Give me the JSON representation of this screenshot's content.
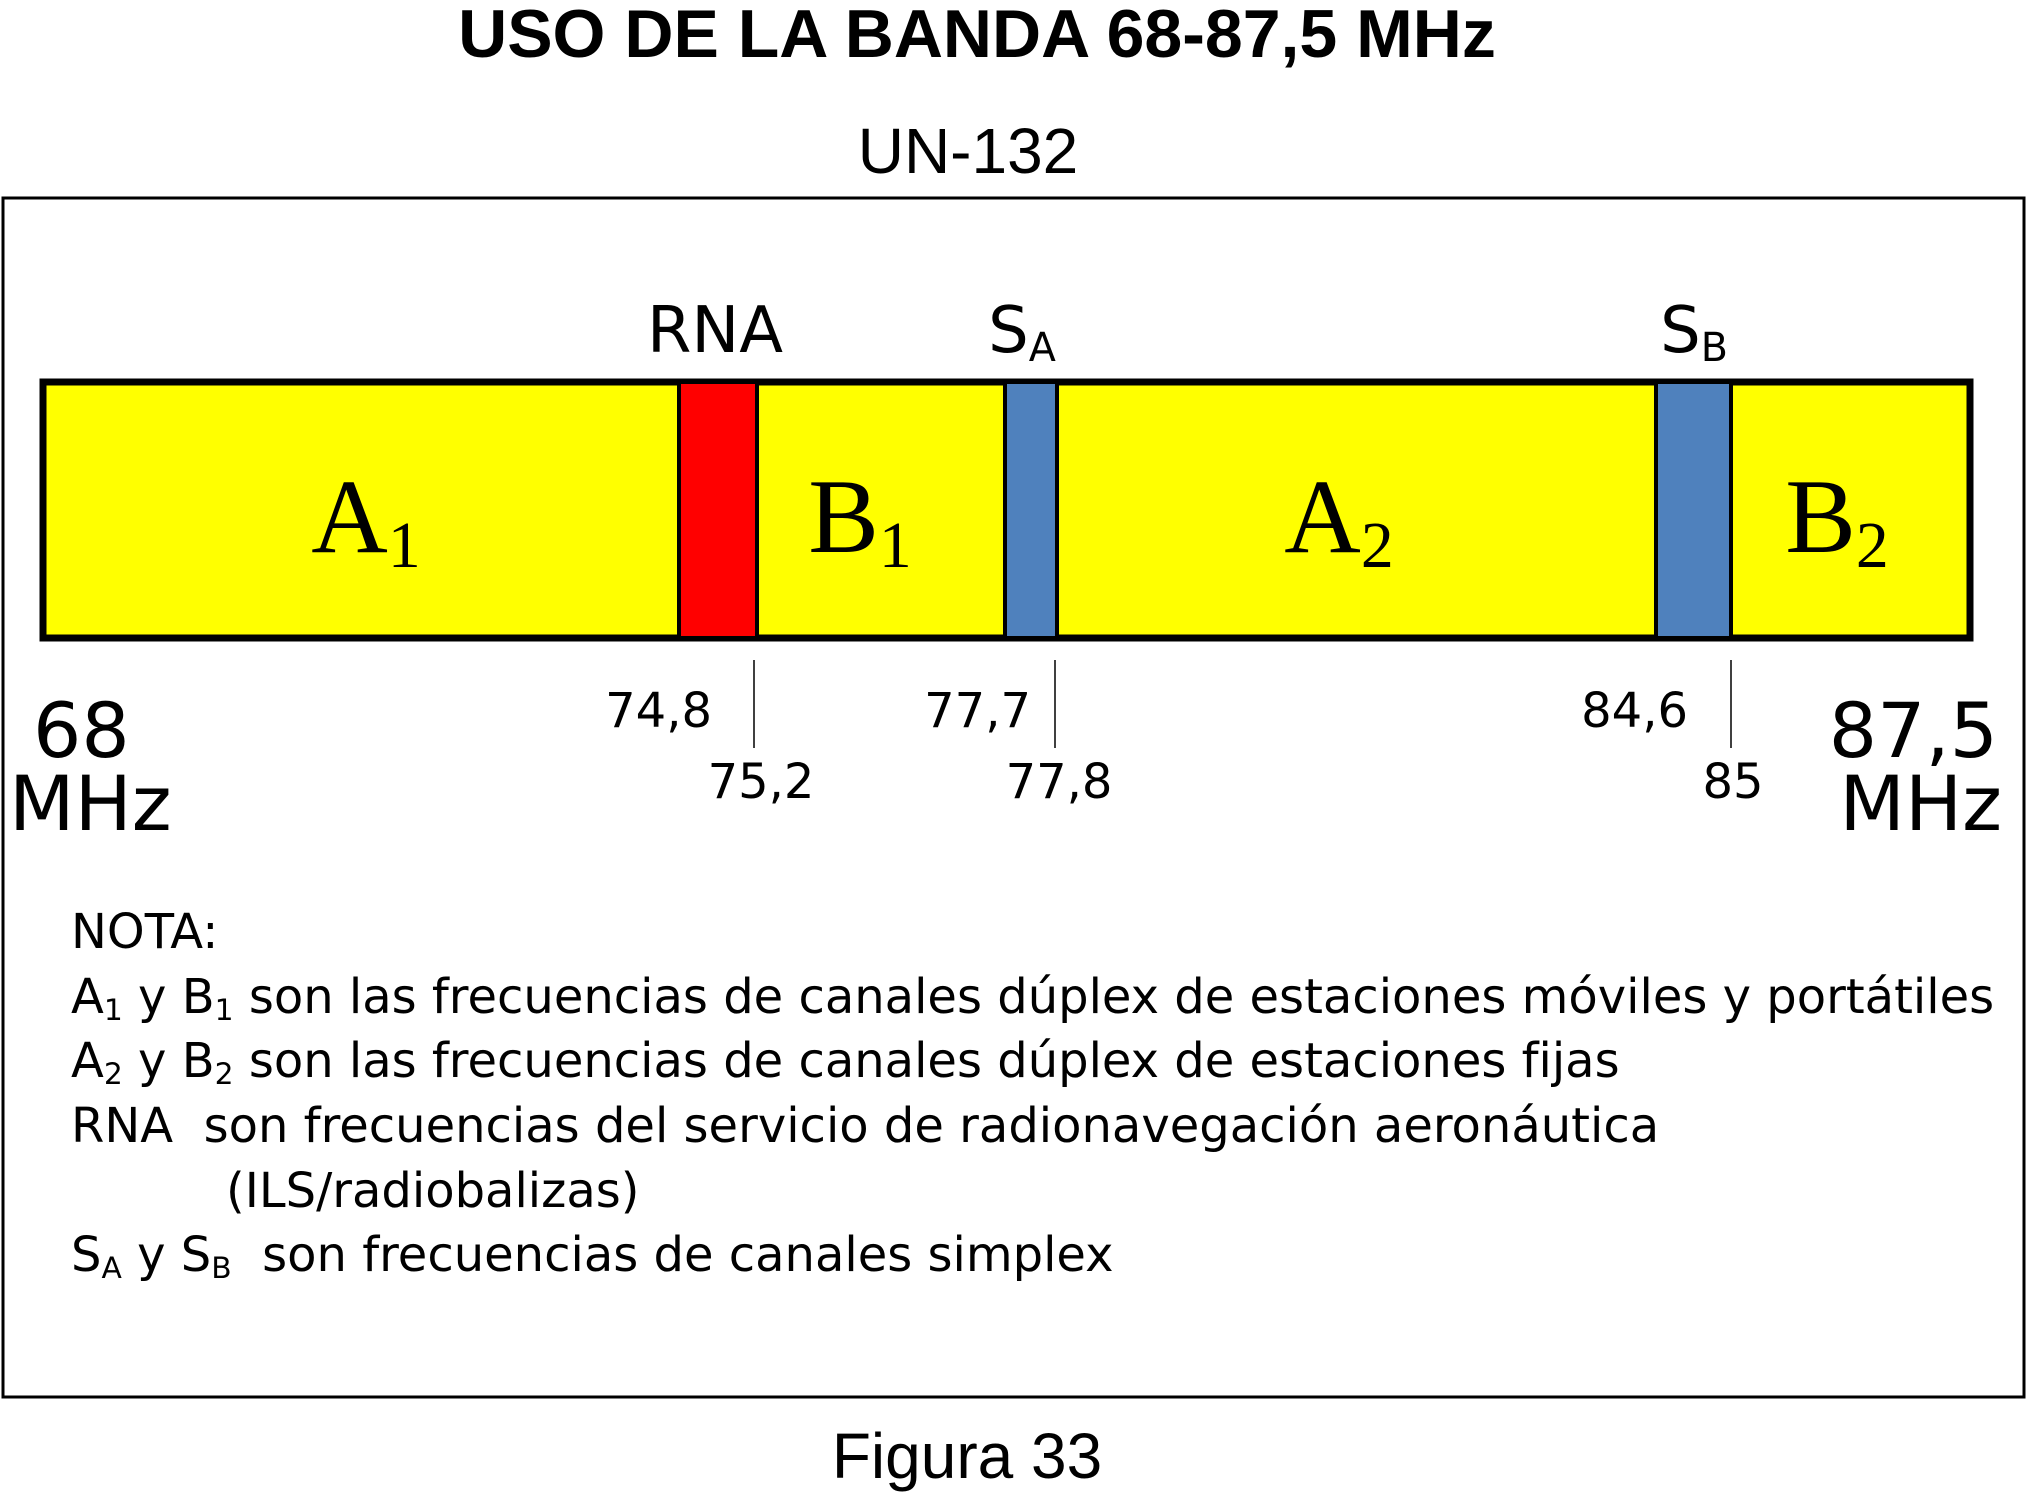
{
  "title": "USO DE LA BANDA 68-87,5 MHz",
  "subtitle": "UN-132",
  "band_labels": {
    "rna": "RNA",
    "sa": {
      "text": "S",
      "sub": "A"
    },
    "sb": {
      "text": "S",
      "sub": "B"
    }
  },
  "segments": [
    {
      "text": "A",
      "sub": "1"
    },
    {
      "text": "B",
      "sub": "1"
    },
    {
      "text": "A",
      "sub": "2"
    },
    {
      "text": "B",
      "sub": "2"
    }
  ],
  "band_start": {
    "value": "68",
    "unit": "MHz"
  },
  "band_end": {
    "value": "87,5",
    "unit": "MHz"
  },
  "boundaries": [
    "74,8",
    "75,2",
    "77,7",
    "77,8",
    "84,6",
    "85"
  ],
  "notes": {
    "heading": "NOTA:",
    "lines": [
      [
        {
          "text": "A",
          "sub": "1"
        },
        {
          "text": " y B",
          "sub": "1"
        },
        {
          "text": " son las frecuencias de canales dúplex de estaciones móviles y portátiles"
        }
      ],
      [
        {
          "text": "A",
          "sub": "2"
        },
        {
          "text": " y B",
          "sub": "2"
        },
        {
          "text": " son las frecuencias de canales dúplex de estaciones fijas"
        }
      ],
      [
        {
          "text": "RNA  son frecuencias del servicio de radionavegación aeronáutica"
        }
      ],
      [
        {
          "text": "(ILS/radiobalizas)"
        }
      ],
      [
        {
          "text": "S",
          "sub": "A"
        },
        {
          "text": " y S",
          "sub": "B"
        },
        {
          "text": "  son frecuencias de canales simplex"
        }
      ]
    ]
  },
  "caption": "Figura 33"
}
